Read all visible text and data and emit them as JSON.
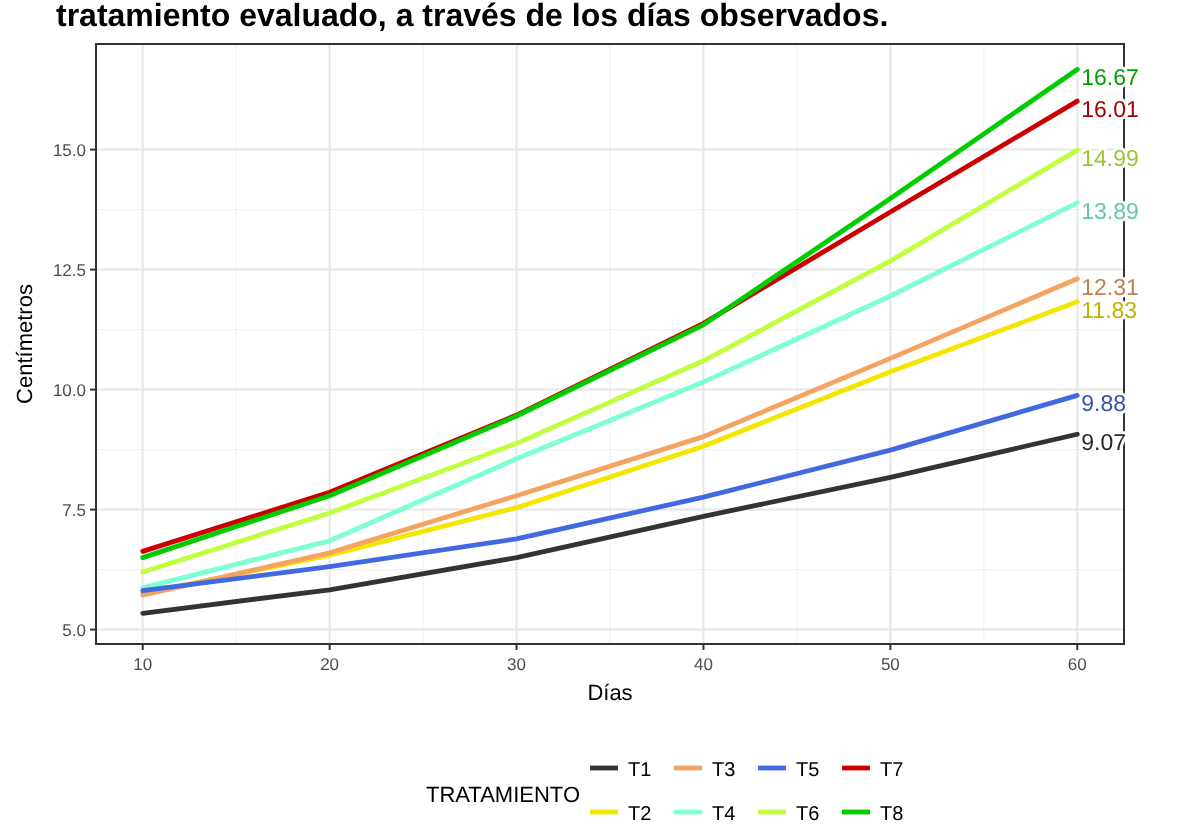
{
  "chart_data": {
    "type": "line",
    "title": "tratamiento evaluado, a través de los días observados.",
    "xlabel": "Días",
    "ylabel": "Centímetros",
    "legend_title": "TRATAMIENTO",
    "x": [
      10,
      20,
      30,
      40,
      50,
      60
    ],
    "xlim": [
      7.5,
      62.5
    ],
    "xticks": [
      10,
      20,
      30,
      40,
      50,
      60
    ],
    "ylim": [
      4.7,
      17.2
    ],
    "yticks": [
      {
        "value": 5,
        "label": "5.0"
      },
      {
        "value": 7.5,
        "label": "7.5"
      },
      {
        "value": 10,
        "label": "10.0"
      },
      {
        "value": 12.5,
        "label": "12.5"
      },
      {
        "value": 15,
        "label": "15.0"
      }
    ],
    "grid": true,
    "legend": "bottom",
    "marker": "none",
    "line_style": "solid",
    "series": [
      {
        "name": "T1",
        "color": "#333333",
        "values": [
          5.34,
          5.83,
          6.5,
          7.36,
          8.17,
          9.07
        ],
        "value_labels": [
          null,
          null,
          null,
          null,
          null,
          "9.07"
        ]
      },
      {
        "name": "T2",
        "color": "#f5e600",
        "values": [
          5.75,
          6.55,
          7.54,
          8.82,
          10.37,
          11.83
        ],
        "value_labels": [
          null,
          null,
          null,
          null,
          null,
          "11.83"
        ]
      },
      {
        "name": "T3",
        "color": "#f4a460",
        "values": [
          5.72,
          6.6,
          7.79,
          9.02,
          10.65,
          12.31
        ],
        "value_labels": [
          null,
          null,
          null,
          null,
          null,
          "12.31"
        ]
      },
      {
        "name": "T4",
        "color": "#7fffd4",
        "values": [
          5.87,
          6.85,
          8.56,
          10.16,
          11.95,
          13.89
        ],
        "value_labels": [
          null,
          null,
          null,
          null,
          null,
          "13.89"
        ]
      },
      {
        "name": "T5",
        "color": "#4169e1",
        "values": [
          5.81,
          6.31,
          6.89,
          7.76,
          8.74,
          9.88
        ],
        "value_labels": [
          null,
          null,
          null,
          null,
          null,
          "9.88"
        ]
      },
      {
        "name": "T6",
        "color": "#c0ff3e",
        "values": [
          6.2,
          7.43,
          8.88,
          10.6,
          12.68,
          14.99
        ],
        "value_labels": [
          null,
          null,
          null,
          null,
          null,
          "14.99"
        ]
      },
      {
        "name": "T7",
        "color": "#cc0000",
        "values": [
          6.63,
          7.86,
          9.47,
          11.38,
          13.7,
          16.01
        ],
        "value_labels": [
          null,
          null,
          null,
          null,
          null,
          "16.01"
        ]
      },
      {
        "name": "T8",
        "color": "#00cc00",
        "values": [
          6.5,
          7.79,
          9.45,
          11.35,
          13.98,
          16.67
        ],
        "value_labels": [
          null,
          null,
          null,
          null,
          null,
          "16.67"
        ]
      }
    ]
  }
}
